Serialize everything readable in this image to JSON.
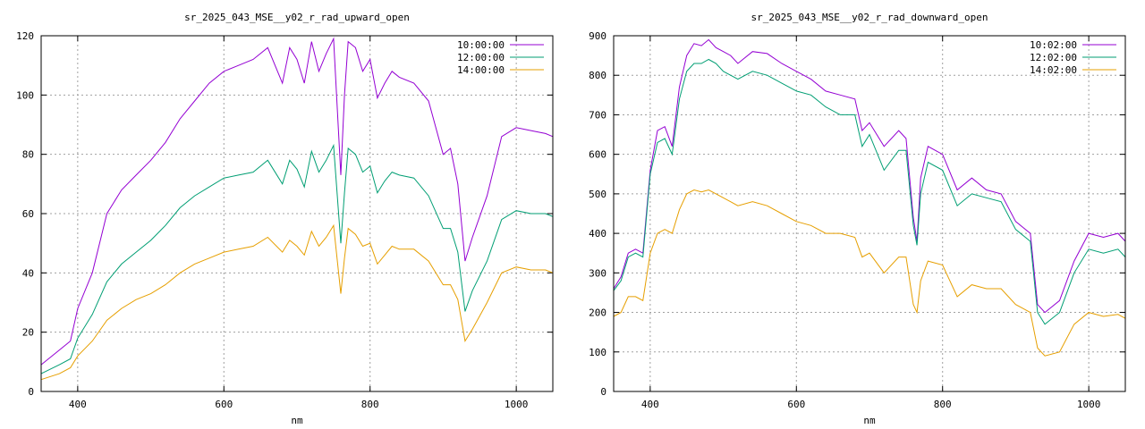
{
  "chart_data": [
    {
      "type": "line",
      "title": "sr_2025_043_MSE__y02_r_rad_upward_open",
      "xlabel": "nm",
      "ylabel": "",
      "xlim": [
        350,
        1050
      ],
      "ylim": [
        0,
        120
      ],
      "xticks": [
        "400",
        "600",
        "800",
        "1000"
      ],
      "yticks": [
        "0",
        "20",
        "40",
        "60",
        "80",
        "100",
        "120"
      ],
      "grid": true,
      "legend_position": "top-right",
      "x": [
        350,
        375,
        390,
        400,
        420,
        440,
        460,
        480,
        500,
        520,
        540,
        560,
        580,
        600,
        620,
        640,
        660,
        680,
        690,
        700,
        710,
        720,
        730,
        740,
        750,
        760,
        765,
        770,
        780,
        790,
        800,
        810,
        820,
        830,
        840,
        860,
        880,
        900,
        910,
        920,
        930,
        940,
        960,
        980,
        1000,
        1020,
        1040,
        1050
      ],
      "series": [
        {
          "name": "10:00:00",
          "color": "#9400d3",
          "values": [
            9,
            14,
            17,
            28,
            40,
            60,
            68,
            73,
            78,
            84,
            92,
            98,
            104,
            108,
            110,
            112,
            116,
            104,
            116,
            112,
            104,
            118,
            108,
            114,
            119,
            73,
            100,
            118,
            116,
            108,
            112,
            99,
            104,
            108,
            106,
            104,
            98,
            80,
            82,
            70,
            44,
            52,
            66,
            86,
            89,
            88,
            87,
            86
          ]
        },
        {
          "name": "12:00:00",
          "color": "#009e73",
          "values": [
            6,
            9,
            11,
            18,
            26,
            37,
            43,
            47,
            51,
            56,
            62,
            66,
            69,
            72,
            73,
            74,
            78,
            70,
            78,
            75,
            69,
            81,
            74,
            78,
            83,
            50,
            67,
            82,
            80,
            74,
            76,
            67,
            71,
            74,
            73,
            72,
            66,
            55,
            55,
            47,
            27,
            34,
            44,
            58,
            61,
            60,
            60,
            59
          ]
        },
        {
          "name": "14:00:00",
          "color": "#e69f00",
          "values": [
            4,
            6,
            8,
            12,
            17,
            24,
            28,
            31,
            33,
            36,
            40,
            43,
            45,
            47,
            48,
            49,
            52,
            47,
            51,
            49,
            46,
            54,
            49,
            52,
            56,
            33,
            45,
            55,
            53,
            49,
            50,
            43,
            46,
            49,
            48,
            48,
            44,
            36,
            36,
            31,
            17,
            21,
            30,
            40,
            42,
            41,
            41,
            40
          ]
        }
      ]
    },
    {
      "type": "line",
      "title": "sr_2025_043_MSE__y02_r_rad_downward_open",
      "xlabel": "nm",
      "ylabel": "",
      "xlim": [
        350,
        1050
      ],
      "ylim": [
        0,
        900
      ],
      "xticks": [
        "400",
        "600",
        "800",
        "1000"
      ],
      "yticks": [
        "0",
        "100",
        "200",
        "300",
        "400",
        "500",
        "600",
        "700",
        "800",
        "900"
      ],
      "grid": true,
      "legend_position": "top-right",
      "x": [
        350,
        360,
        370,
        380,
        390,
        400,
        410,
        420,
        430,
        440,
        450,
        460,
        470,
        480,
        490,
        500,
        510,
        520,
        540,
        560,
        580,
        600,
        620,
        640,
        660,
        680,
        690,
        700,
        720,
        740,
        750,
        760,
        765,
        770,
        780,
        800,
        820,
        840,
        860,
        880,
        900,
        920,
        930,
        940,
        960,
        980,
        1000,
        1020,
        1040,
        1050
      ],
      "series": [
        {
          "name": "10:02:00",
          "color": "#9400d3",
          "values": [
            260,
            290,
            350,
            360,
            350,
            560,
            660,
            670,
            620,
            770,
            850,
            880,
            875,
            890,
            870,
            860,
            850,
            830,
            860,
            855,
            830,
            810,
            790,
            760,
            750,
            740,
            660,
            680,
            620,
            660,
            640,
            440,
            380,
            540,
            620,
            600,
            510,
            540,
            510,
            500,
            430,
            400,
            220,
            200,
            230,
            330,
            400,
            390,
            400,
            380
          ]
        },
        {
          "name": "12:02:00",
          "color": "#009e73",
          "values": [
            255,
            280,
            340,
            350,
            340,
            550,
            630,
            640,
            600,
            740,
            810,
            830,
            830,
            840,
            830,
            810,
            800,
            790,
            810,
            800,
            780,
            760,
            750,
            720,
            700,
            700,
            620,
            650,
            560,
            610,
            610,
            420,
            370,
            500,
            580,
            560,
            470,
            500,
            490,
            480,
            410,
            380,
            200,
            170,
            200,
            300,
            360,
            350,
            360,
            340
          ]
        },
        {
          "name": "14:02:00",
          "color": "#e69f00",
          "values": [
            190,
            200,
            240,
            240,
            230,
            350,
            400,
            410,
            400,
            460,
            500,
            510,
            505,
            510,
            500,
            490,
            480,
            470,
            480,
            470,
            450,
            430,
            420,
            400,
            400,
            390,
            340,
            350,
            300,
            340,
            340,
            220,
            200,
            280,
            330,
            320,
            240,
            270,
            260,
            260,
            220,
            200,
            110,
            90,
            100,
            170,
            200,
            190,
            195,
            185
          ]
        }
      ]
    }
  ]
}
